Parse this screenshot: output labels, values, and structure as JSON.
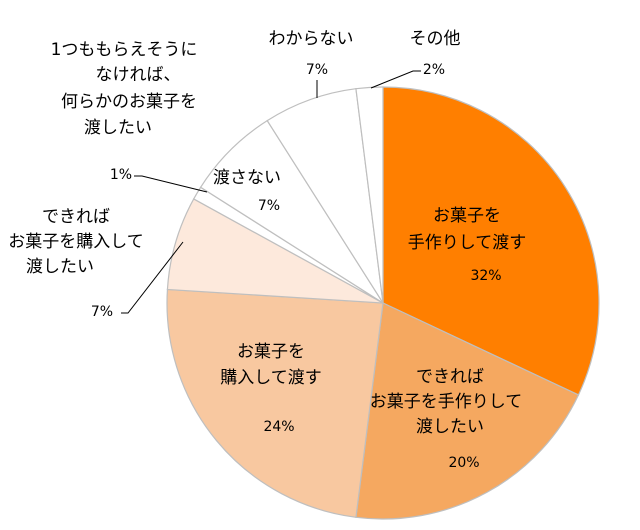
{
  "chart_data": {
    "type": "pie",
    "slices": [
      {
        "label": [
          "お菓子を",
          "手作りして渡す"
        ],
        "value": 32,
        "value_label": "32%",
        "color": "#FF7F00"
      },
      {
        "label": [
          "できれば",
          "お菓子を手作りして",
          "渡したい"
        ],
        "value": 20,
        "value_label": "20%",
        "color": "#F5A860"
      },
      {
        "label": [
          "お菓子を",
          "購入して渡す"
        ],
        "value": 24,
        "value_label": "24%",
        "color": "#F8C8A0"
      },
      {
        "label": [
          "できれば",
          "お菓子を購入して",
          "渡したい"
        ],
        "value": 7,
        "value_label": "7%",
        "color": "#FDE9DC"
      },
      {
        "label": [
          "1つももらえそうに",
          "なければ、",
          "何らかのお菓子を",
          "渡したい"
        ],
        "value": 1,
        "value_label": "1%",
        "color": "#FFFFFF"
      },
      {
        "label": [
          "渡さない"
        ],
        "value": 7,
        "value_label": "7%",
        "color": "#FFFFFF"
      },
      {
        "label": [
          "わからない"
        ],
        "value": 7,
        "value_label": "7%",
        "color": "#FFFFFF"
      },
      {
        "label": [
          "その他"
        ],
        "value": 2,
        "value_label": "2%",
        "color": "#FFFFFF"
      }
    ],
    "border_color": "#BFBFBF"
  }
}
